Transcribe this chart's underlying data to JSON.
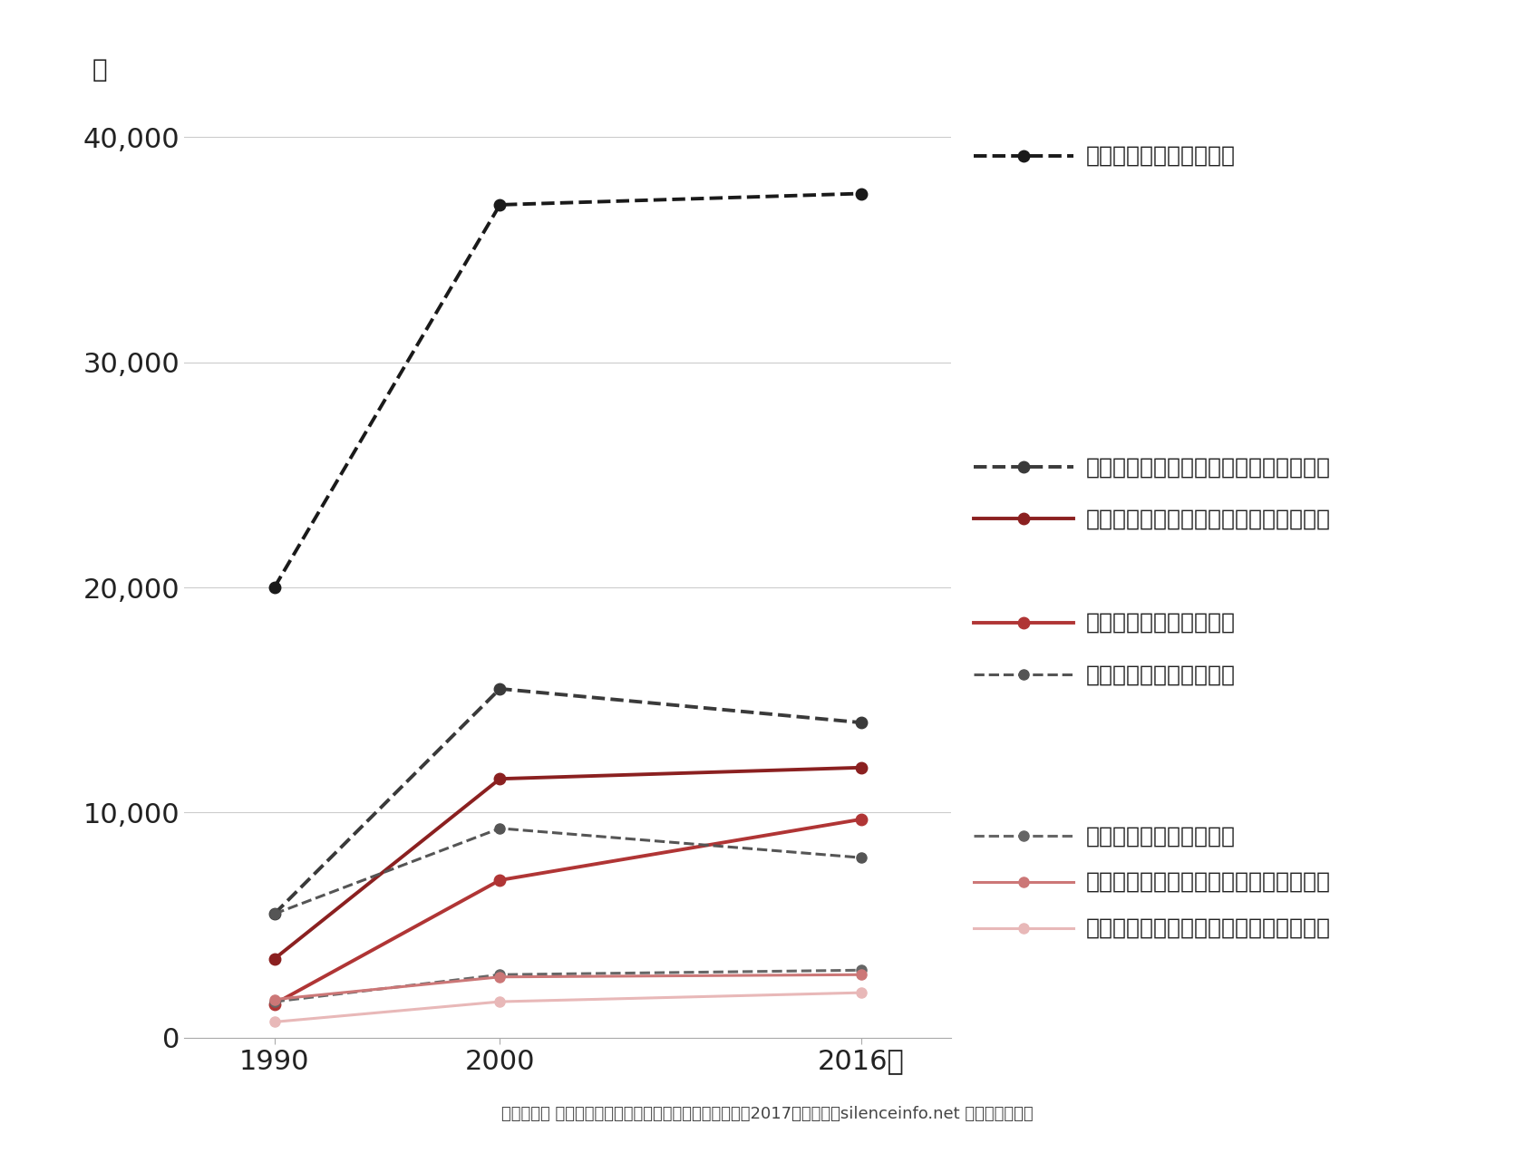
{
  "x": [
    1990,
    2000,
    2016
  ],
  "series": [
    {
      "label": "男性（修士）：自然科学",
      "values": [
        20000,
        37000,
        37500
      ],
      "color": "#1a1a1a",
      "linestyle": "dashed",
      "linewidth": 2.8,
      "markersize": 9
    },
    {
      "label": "男性（修士）：人文・社会科学・その他",
      "values": [
        5500,
        15500,
        14000
      ],
      "color": "#3a3a3a",
      "linestyle": "dashed",
      "linewidth": 2.8,
      "markersize": 9
    },
    {
      "label": "女性（修士）：人文・社会科学・その他",
      "values": [
        3500,
        11500,
        12000
      ],
      "color": "#8b2020",
      "linestyle": "solid",
      "linewidth": 2.8,
      "markersize": 9
    },
    {
      "label": "女性（修士）：自然科学",
      "values": [
        1500,
        7000,
        9700
      ],
      "color": "#b03535",
      "linestyle": "solid",
      "linewidth": 2.8,
      "markersize": 9
    },
    {
      "label": "男性（博士）：自然科学",
      "values": [
        5500,
        9300,
        8000
      ],
      "color": "#555555",
      "linestyle": "dashed",
      "linewidth": 2.2,
      "markersize": 8
    },
    {
      "label": "女性（博士）：自然科学",
      "values": [
        1600,
        2800,
        3000
      ],
      "color": "#666666",
      "linestyle": "dashed",
      "linewidth": 2.2,
      "markersize": 8
    },
    {
      "label": "男性（博士）：人文・社会科学・その他",
      "values": [
        1700,
        2700,
        2800
      ],
      "color": "#cc7777",
      "linestyle": "solid",
      "linewidth": 2.2,
      "markersize": 8
    },
    {
      "label": "女性（博士）：人文・社会科学・その他",
      "values": [
        700,
        1600,
        2000
      ],
      "color": "#e8b8b8",
      "linestyle": "solid",
      "linewidth": 2.2,
      "markersize": 8
    }
  ],
  "ylim": [
    0,
    42000
  ],
  "yticks": [
    0,
    10000,
    20000,
    30000,
    40000
  ],
  "ytick_labels": [
    "0",
    "10,000",
    "20,000",
    "30,000",
    "40,000"
  ],
  "xticks": [
    1990,
    2000,
    2016
  ],
  "xtick_labels": [
    "1990",
    "2000",
    "2016年"
  ],
  "ylabel_unit": "人",
  "source_text": "文部科学省 科学技術・学術政策研究所、「科学技術指標2017」を基に、silenceinfo.net が加工・作成。",
  "background_color": "#ffffff",
  "grid_color": "#cccccc"
}
